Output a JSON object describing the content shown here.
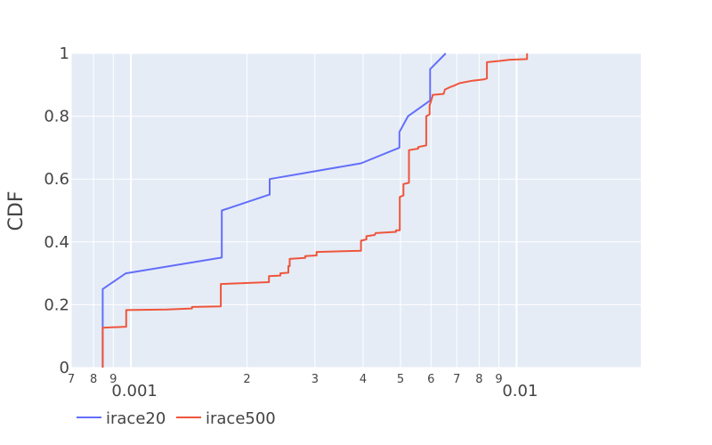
{
  "chart_data": {
    "type": "line",
    "line_shape": "step-like",
    "title": "",
    "xlabel": "",
    "ylabel": "CDF",
    "x_scale": "log",
    "xlim": [
      0.0007,
      0.021
    ],
    "ylim": [
      0,
      1
    ],
    "grid": true,
    "legend_placement": "bottom-left",
    "x_minor_ticks": [
      {
        "value": 0.0007,
        "label": "7"
      },
      {
        "value": 0.0008,
        "label": "8"
      },
      {
        "value": 0.0009,
        "label": "9"
      },
      {
        "value": 0.002,
        "label": "2"
      },
      {
        "value": 0.003,
        "label": "3"
      },
      {
        "value": 0.004,
        "label": "4"
      },
      {
        "value": 0.005,
        "label": "5"
      },
      {
        "value": 0.006,
        "label": "6"
      },
      {
        "value": 0.007,
        "label": "7"
      },
      {
        "value": 0.008,
        "label": "8"
      },
      {
        "value": 0.009,
        "label": "9"
      }
    ],
    "x_major_ticks": [
      {
        "value": 0.001,
        "label": "0.001"
      },
      {
        "value": 0.01,
        "label": "0.01"
      }
    ],
    "y_ticks": [
      {
        "value": 0,
        "label": "0"
      },
      {
        "value": 0.2,
        "label": "0.2"
      },
      {
        "value": 0.4,
        "label": "0.4"
      },
      {
        "value": 0.6,
        "label": "0.6"
      },
      {
        "value": 0.8,
        "label": "0.8"
      },
      {
        "value": 1,
        "label": "1"
      }
    ],
    "series": [
      {
        "name": "irace20",
        "color": "#636efa",
        "points": [
          [
            0.000845,
            0.0
          ],
          [
            0.000845,
            0.25
          ],
          [
            0.00097,
            0.3
          ],
          [
            0.00172,
            0.35
          ],
          [
            0.00172,
            0.5
          ],
          [
            0.00228,
            0.55
          ],
          [
            0.00229,
            0.55
          ],
          [
            0.00229,
            0.6
          ],
          [
            0.00395,
            0.65
          ],
          [
            0.00497,
            0.7
          ],
          [
            0.00497,
            0.75
          ],
          [
            0.00523,
            0.8
          ],
          [
            0.00597,
            0.85
          ],
          [
            0.00597,
            0.95
          ],
          [
            0.00655,
            1.0
          ]
        ]
      },
      {
        "name": "irace500",
        "color": "#ef553b",
        "points": [
          [
            0.000845,
            0.0
          ],
          [
            0.000845,
            0.127
          ],
          [
            0.000972,
            0.13
          ],
          [
            0.000972,
            0.183
          ],
          [
            0.00124,
            0.185
          ],
          [
            0.00144,
            0.188
          ],
          [
            0.00144,
            0.193
          ],
          [
            0.00171,
            0.195
          ],
          [
            0.00171,
            0.266
          ],
          [
            0.00228,
            0.272
          ],
          [
            0.00228,
            0.291
          ],
          [
            0.00244,
            0.293
          ],
          [
            0.00244,
            0.3
          ],
          [
            0.00256,
            0.302
          ],
          [
            0.00256,
            0.323
          ],
          [
            0.00258,
            0.323
          ],
          [
            0.00258,
            0.346
          ],
          [
            0.00283,
            0.349
          ],
          [
            0.00283,
            0.355
          ],
          [
            0.00303,
            0.357
          ],
          [
            0.00303,
            0.368
          ],
          [
            0.00395,
            0.372
          ],
          [
            0.00395,
            0.404
          ],
          [
            0.00408,
            0.408
          ],
          [
            0.00408,
            0.418
          ],
          [
            0.00429,
            0.422
          ],
          [
            0.00431,
            0.428
          ],
          [
            0.00487,
            0.432
          ],
          [
            0.00487,
            0.437
          ],
          [
            0.00498,
            0.437
          ],
          [
            0.00498,
            0.543
          ],
          [
            0.00509,
            0.548
          ],
          [
            0.00509,
            0.584
          ],
          [
            0.00526,
            0.588
          ],
          [
            0.00526,
            0.692
          ],
          [
            0.00556,
            0.697
          ],
          [
            0.00556,
            0.702
          ],
          [
            0.00583,
            0.707
          ],
          [
            0.00583,
            0.8
          ],
          [
            0.00595,
            0.806
          ],
          [
            0.00595,
            0.834
          ],
          [
            0.00605,
            0.862
          ],
          [
            0.00606,
            0.868
          ],
          [
            0.00647,
            0.871
          ],
          [
            0.00652,
            0.885
          ],
          [
            0.00673,
            0.893
          ],
          [
            0.00687,
            0.897
          ],
          [
            0.00711,
            0.905
          ],
          [
            0.00768,
            0.913
          ],
          [
            0.00821,
            0.917
          ],
          [
            0.00838,
            0.92
          ],
          [
            0.00838,
            0.972
          ],
          [
            0.00903,
            0.976
          ],
          [
            0.0096,
            0.98
          ],
          [
            0.01065,
            0.982
          ],
          [
            0.01065,
            1.0
          ]
        ]
      }
    ]
  }
}
